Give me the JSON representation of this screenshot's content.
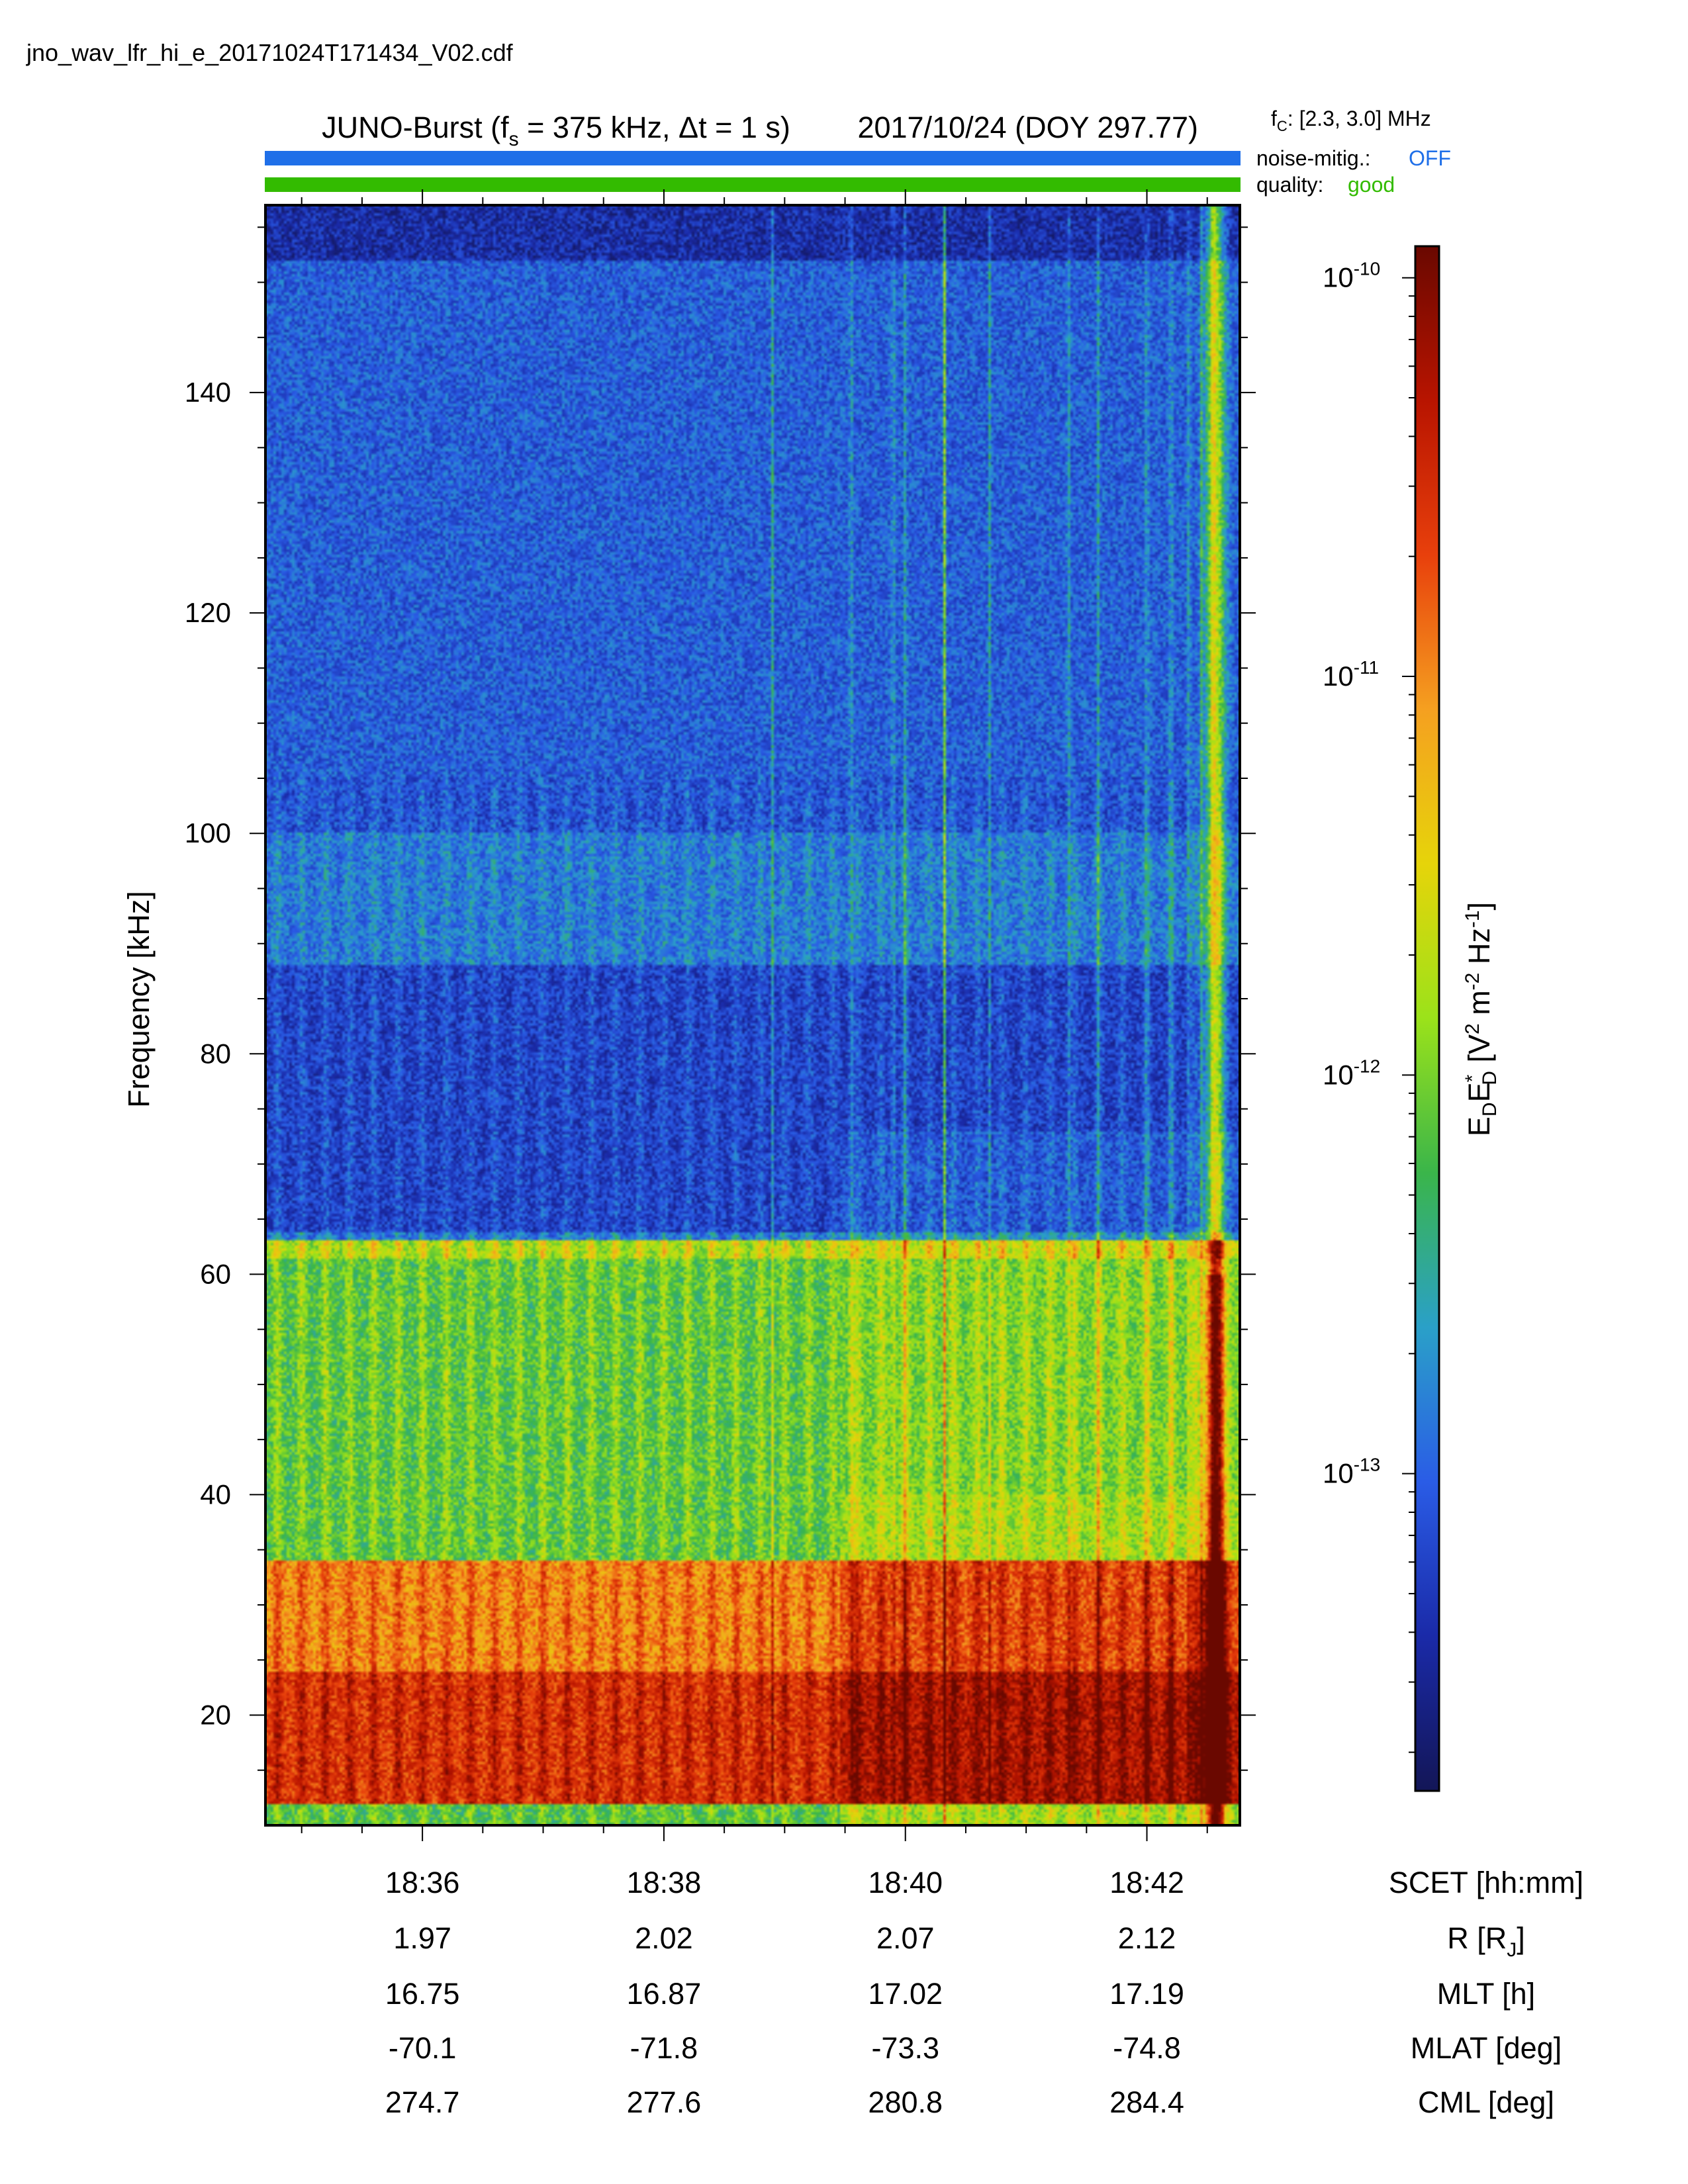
{
  "file_name": "jno_wav_lfr_hi_e_20171024T171434_V02.cdf",
  "header": {
    "title_prefix": "JUNO-Burst (f",
    "title_sub": "s",
    "title_rate": " = 375 kHz, Δt = 1 s)",
    "title_date": "2017/10/24 (DOY 297.77)",
    "fc_prefix": "f",
    "fc_sub": "C",
    "fc_value": ": [2.3, 3.0] MHz",
    "noise_label": "noise-mitig.:",
    "noise_value": "OFF",
    "quality_label": "quality:",
    "quality_value": "good"
  },
  "colors": {
    "noise_bar": "#1f6fe8",
    "quality_bar": "#33bb00",
    "noise_text": "#1f6fe8",
    "quality_text": "#33bb00"
  },
  "chart_data": {
    "type": "heatmap",
    "ylabel": "Frequency [kHz]",
    "ylim": [
      10,
      157
    ],
    "yticks": [
      20,
      40,
      60,
      80,
      100,
      120,
      140
    ],
    "ytick_labels": [
      "20",
      "40",
      "60",
      "80",
      "100",
      "120",
      "140"
    ],
    "xlim_minutes": [
      1114.7,
      1122.77
    ],
    "xticks_minutes": [
      1116,
      1118,
      1120,
      1122
    ],
    "x_minor_step_minutes": 0.5,
    "x_rows": [
      {
        "label": "SCET [hh:mm]",
        "values": [
          "18:36",
          "18:38",
          "18:40",
          "18:42"
        ]
      },
      {
        "label_main": "R [R",
        "label_sub": "J",
        "label_end": "]",
        "values": [
          "1.97",
          "2.02",
          "2.07",
          "2.12"
        ]
      },
      {
        "label": "MLT [h]",
        "values": [
          "16.75",
          "16.87",
          "17.02",
          "17.19"
        ]
      },
      {
        "label": "MLAT [deg]",
        "values": [
          "-70.1",
          "-71.8",
          "-73.3",
          "-74.8"
        ]
      },
      {
        "label": "CML [deg]",
        "values": [
          "274.7",
          "277.6",
          "280.8",
          "284.4"
        ]
      }
    ],
    "colorbar": {
      "scale": "log",
      "range": [
        1.6e-14,
        1.2e-10
      ],
      "ticks": [
        1e-13,
        1e-12,
        1e-11,
        1e-10
      ],
      "tick_base": "10",
      "tick_exponents": [
        "-13",
        "-12",
        "-11",
        "-10"
      ],
      "label": "E_D E_D* [V^2 m^-2 Hz^-1]",
      "colormap": [
        "#131657",
        "#1a2aa8",
        "#2a5ce6",
        "#2aa0c8",
        "#3ab54a",
        "#9be21a",
        "#e6d40a",
        "#f5a020",
        "#e8400c",
        "#b81400",
        "#6a0800"
      ]
    },
    "features": {
      "bands": [
        {
          "from_khz": 10,
          "to_khz": 12,
          "level": 0.45
        },
        {
          "from_khz": 12,
          "to_khz": 24,
          "level": 0.86
        },
        {
          "from_khz": 24,
          "to_khz": 34,
          "level": 0.75
        },
        {
          "from_khz": 34,
          "to_khz": 63,
          "level": 0.46
        },
        {
          "from_khz": 63,
          "to_khz": 88,
          "level": 0.17
        },
        {
          "from_khz": 88,
          "to_khz": 100,
          "level": 0.26
        },
        {
          "from_khz": 100,
          "to_khz": 152,
          "level": 0.2
        },
        {
          "from_khz": 152,
          "to_khz": 157,
          "level": 0.1
        }
      ],
      "edge_khz": 63,
      "period_minutes": 0.2,
      "bright_onset_minutes": 1119.45,
      "strong_lines_minutes": [
        1120.33
      ],
      "faint_lines_minutes": [
        1118.9,
        1119.55,
        1119.9,
        1120.0,
        1120.7,
        1121.35,
        1121.6,
        1122.0,
        1122.2,
        1122.35,
        1122.45,
        1122.55
      ],
      "intense_end_minutes": [
        1122.4,
        1122.77
      ]
    }
  }
}
